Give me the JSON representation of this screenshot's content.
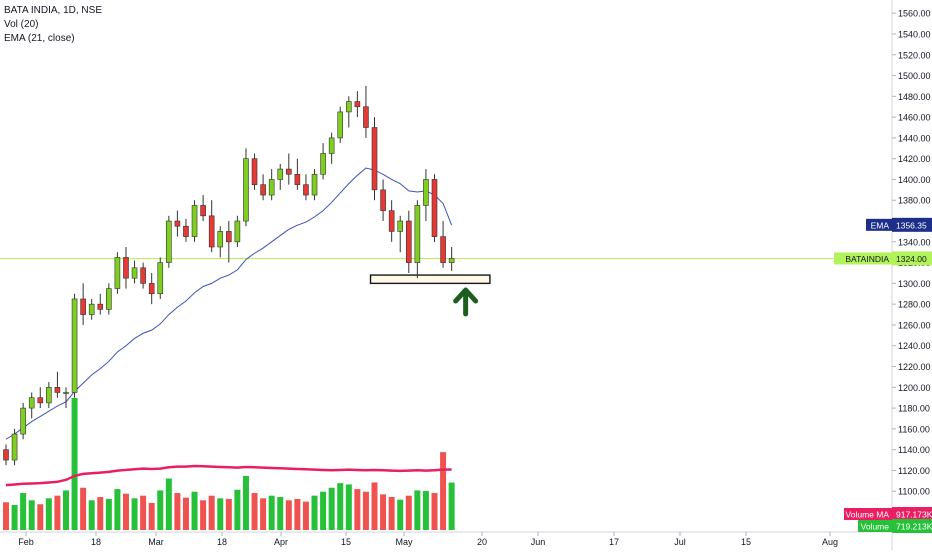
{
  "legend": {
    "symbol_line": "BATA INDIA, 1D, NSE",
    "volume_line": "Vol (20)",
    "ema_line": "EMA (21, close)"
  },
  "price_axis": {
    "ticks": [
      1100,
      1120,
      1140,
      1160,
      1180,
      1200,
      1220,
      1240,
      1260,
      1280,
      1300,
      1320,
      1340,
      1360,
      1380,
      1400,
      1420,
      1440,
      1460,
      1480,
      1500,
      1520,
      1540,
      1560
    ]
  },
  "time_axis": {
    "labels": [
      "Feb",
      "18",
      "Mar",
      "18",
      "Apr",
      "15",
      "May",
      "20",
      "Jun",
      "17",
      "Jul",
      "15",
      "Aug"
    ]
  },
  "badges": {
    "ema": {
      "label": "EMA",
      "value": "1356.35",
      "color": "#1e2f8a"
    },
    "price": {
      "label": "BATAINDIA",
      "value": "1324.00",
      "color": "#b2f25a"
    },
    "volume_ma": {
      "label": "Volume MA",
      "value": "917.173K",
      "color": "#e91e63"
    },
    "volume": {
      "label": "Volume",
      "value": "719.213K",
      "color": "#26c039"
    }
  },
  "colors": {
    "up": "#7ecf1f",
    "down": "#e53935",
    "ema": "#3f51b5",
    "volume_up": "#26c039",
    "volume_down": "#ef5350",
    "volume_ma": "#e91e63",
    "price_line": "#b2f25a",
    "arrow": "#1b5e20",
    "support_box": "#fff9e6"
  },
  "annotations": {
    "support_zone": {
      "from_bar": 43,
      "to_bar": 56,
      "low": 1300,
      "high": 1308
    },
    "arrow_bar": 52
  },
  "chart_data": {
    "type": "candlestick",
    "symbol": "BATA INDIA",
    "interval": "1D",
    "exchange": "NSE",
    "ylim": [
      1080,
      1565
    ],
    "x_axis_labels": [
      "Feb",
      "18",
      "Mar",
      "18",
      "Apr",
      "15",
      "May",
      "20",
      "Jun",
      "17",
      "Jul",
      "15",
      "Aug"
    ],
    "candles": [
      [
        1140,
        1145,
        1125,
        1130
      ],
      [
        1130,
        1160,
        1125,
        1155
      ],
      [
        1155,
        1185,
        1150,
        1180
      ],
      [
        1180,
        1195,
        1170,
        1190
      ],
      [
        1190,
        1200,
        1180,
        1185
      ],
      [
        1185,
        1205,
        1180,
        1200
      ],
      [
        1200,
        1215,
        1190,
        1195
      ],
      [
        1195,
        1200,
        1180,
        1195
      ],
      [
        1195,
        1290,
        1190,
        1285
      ],
      [
        1285,
        1300,
        1260,
        1270
      ],
      [
        1270,
        1285,
        1265,
        1280
      ],
      [
        1280,
        1290,
        1270,
        1275
      ],
      [
        1275,
        1300,
        1270,
        1295
      ],
      [
        1295,
        1330,
        1290,
        1325
      ],
      [
        1325,
        1335,
        1295,
        1305
      ],
      [
        1305,
        1322,
        1300,
        1315
      ],
      [
        1315,
        1320,
        1295,
        1300
      ],
      [
        1300,
        1310,
        1280,
        1290
      ],
      [
        1290,
        1325,
        1285,
        1320
      ],
      [
        1320,
        1365,
        1315,
        1360
      ],
      [
        1360,
        1370,
        1345,
        1355
      ],
      [
        1355,
        1362,
        1340,
        1345
      ],
      [
        1345,
        1380,
        1340,
        1375
      ],
      [
        1375,
        1385,
        1360,
        1365
      ],
      [
        1365,
        1380,
        1330,
        1335
      ],
      [
        1335,
        1355,
        1325,
        1350
      ],
      [
        1350,
        1360,
        1320,
        1340
      ],
      [
        1340,
        1365,
        1335,
        1360
      ],
      [
        1360,
        1430,
        1355,
        1420
      ],
      [
        1420,
        1425,
        1390,
        1395
      ],
      [
        1395,
        1405,
        1380,
        1385
      ],
      [
        1385,
        1410,
        1380,
        1400
      ],
      [
        1400,
        1415,
        1390,
        1410
      ],
      [
        1410,
        1425,
        1395,
        1405
      ],
      [
        1405,
        1420,
        1390,
        1395
      ],
      [
        1395,
        1405,
        1380,
        1385
      ],
      [
        1385,
        1410,
        1380,
        1405
      ],
      [
        1405,
        1435,
        1400,
        1425
      ],
      [
        1425,
        1445,
        1415,
        1440
      ],
      [
        1440,
        1470,
        1435,
        1465
      ],
      [
        1465,
        1480,
        1450,
        1475
      ],
      [
        1475,
        1485,
        1460,
        1470
      ],
      [
        1470,
        1490,
        1440,
        1450
      ],
      [
        1450,
        1460,
        1380,
        1390
      ],
      [
        1390,
        1400,
        1360,
        1370
      ],
      [
        1370,
        1380,
        1340,
        1350
      ],
      [
        1350,
        1365,
        1330,
        1360
      ],
      [
        1360,
        1370,
        1310,
        1320
      ],
      [
        1320,
        1380,
        1305,
        1375
      ],
      [
        1375,
        1410,
        1360,
        1400
      ],
      [
        1400,
        1405,
        1340,
        1345
      ],
      [
        1345,
        1360,
        1315,
        1320
      ],
      [
        1320,
        1335,
        1312,
        1324
      ]
    ],
    "ema21": [
      1150,
      1155,
      1161,
      1167,
      1172,
      1177,
      1182,
      1186,
      1196,
      1204,
      1212,
      1218,
      1225,
      1234,
      1240,
      1247,
      1252,
      1255,
      1261,
      1270,
      1277,
      1283,
      1291,
      1297,
      1300,
      1305,
      1308,
      1313,
      1323,
      1329,
      1334,
      1340,
      1346,
      1352,
      1356,
      1359,
      1364,
      1370,
      1378,
      1387,
      1396,
      1404,
      1411,
      1409,
      1405,
      1400,
      1396,
      1389,
      1388,
      1389,
      1385,
      1377,
      1356
    ],
    "volume_k": [
      420,
      380,
      560,
      450,
      390,
      480,
      520,
      600,
      2000,
      640,
      450,
      500,
      470,
      620,
      550,
      480,
      520,
      410,
      600,
      780,
      560,
      490,
      580,
      450,
      520,
      480,
      470,
      610,
      820,
      560,
      480,
      520,
      500,
      450,
      470,
      430,
      520,
      580,
      640,
      710,
      690,
      620,
      580,
      720,
      540,
      500,
      460,
      520,
      600,
      590,
      560,
      1180,
      719
    ],
    "volume_ma_k": [
      680,
      690,
      700,
      705,
      710,
      720,
      730,
      760,
      820,
      850,
      860,
      870,
      880,
      900,
      910,
      920,
      930,
      925,
      930,
      950,
      960,
      960,
      970,
      965,
      960,
      955,
      950,
      945,
      955,
      950,
      945,
      940,
      935,
      930,
      925,
      920,
      915,
      910,
      905,
      910,
      915,
      910,
      905,
      910,
      905,
      900,
      895,
      900,
      905,
      900,
      905,
      915,
      917
    ],
    "last_price": 1324.0,
    "last_ema": 1356.35,
    "last_volume": "719.213K",
    "volume_ma": "917.173K"
  }
}
